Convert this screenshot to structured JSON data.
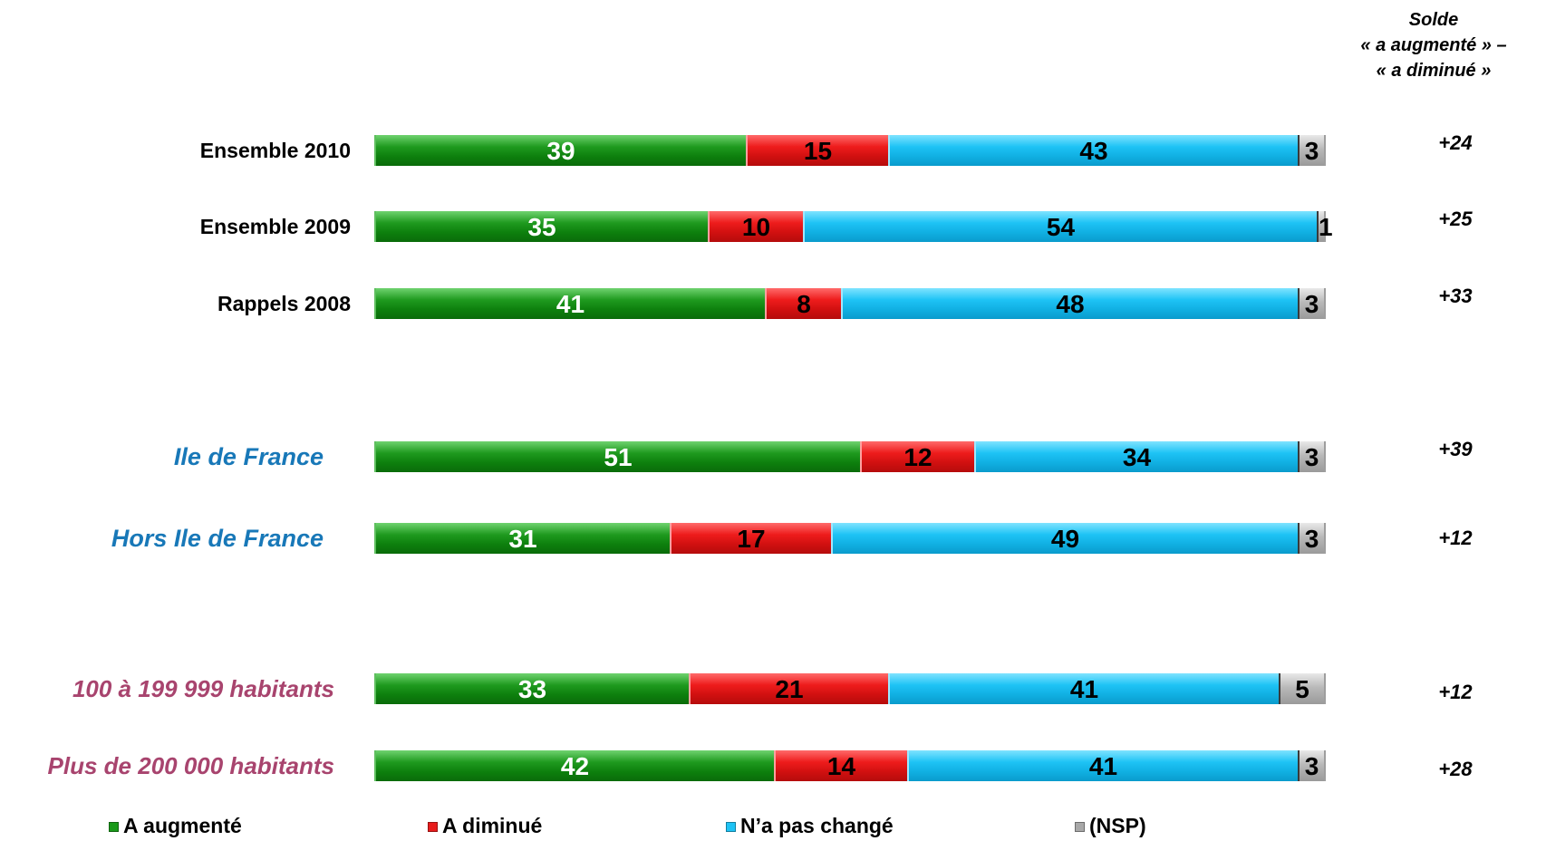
{
  "header": {
    "solde_line1": "Solde",
    "solde_line2": "« a augmenté » –",
    "solde_line3": "« a diminué »"
  },
  "legend": [
    {
      "label": "A augmenté",
      "color": "#1a9a1a"
    },
    {
      "label": "A diminué",
      "color": "#e81c1c"
    },
    {
      "label": "N’a pas changé",
      "color": "#1ec3f5"
    },
    {
      "label": "(NSP)",
      "color": "#a8a8a8"
    }
  ],
  "chart_data": {
    "type": "bar",
    "orientation": "horizontal",
    "stacked": true,
    "categories": [
      "Ensemble 2010",
      "Ensemble 2009",
      "Rappels 2008",
      "Ile de France",
      "Hors Ile de France",
      "100 à 199 999 habitants",
      "Plus de 200 000 habitants"
    ],
    "label_styles": [
      "black",
      "black",
      "black",
      "blue",
      "blue",
      "purple",
      "purple"
    ],
    "series": [
      {
        "name": "A augmenté",
        "values": [
          39,
          35,
          41,
          51,
          31,
          33,
          42
        ],
        "color": "#1a9a1a"
      },
      {
        "name": "A diminué",
        "values": [
          15,
          10,
          8,
          12,
          17,
          21,
          14
        ],
        "color": "#e81c1c"
      },
      {
        "name": "N’a pas changé",
        "values": [
          43,
          54,
          48,
          34,
          49,
          41,
          41
        ],
        "color": "#1ec3f5"
      },
      {
        "name": "(NSP)",
        "values": [
          3,
          1,
          3,
          3,
          3,
          5,
          3
        ],
        "color": "#a8a8a8"
      }
    ],
    "solde": [
      "+24",
      "+25",
      "+33",
      "+39",
      "+12",
      "+12",
      "+28"
    ],
    "xlim": [
      0,
      100
    ],
    "grid": false,
    "legend_position": "bottom"
  }
}
